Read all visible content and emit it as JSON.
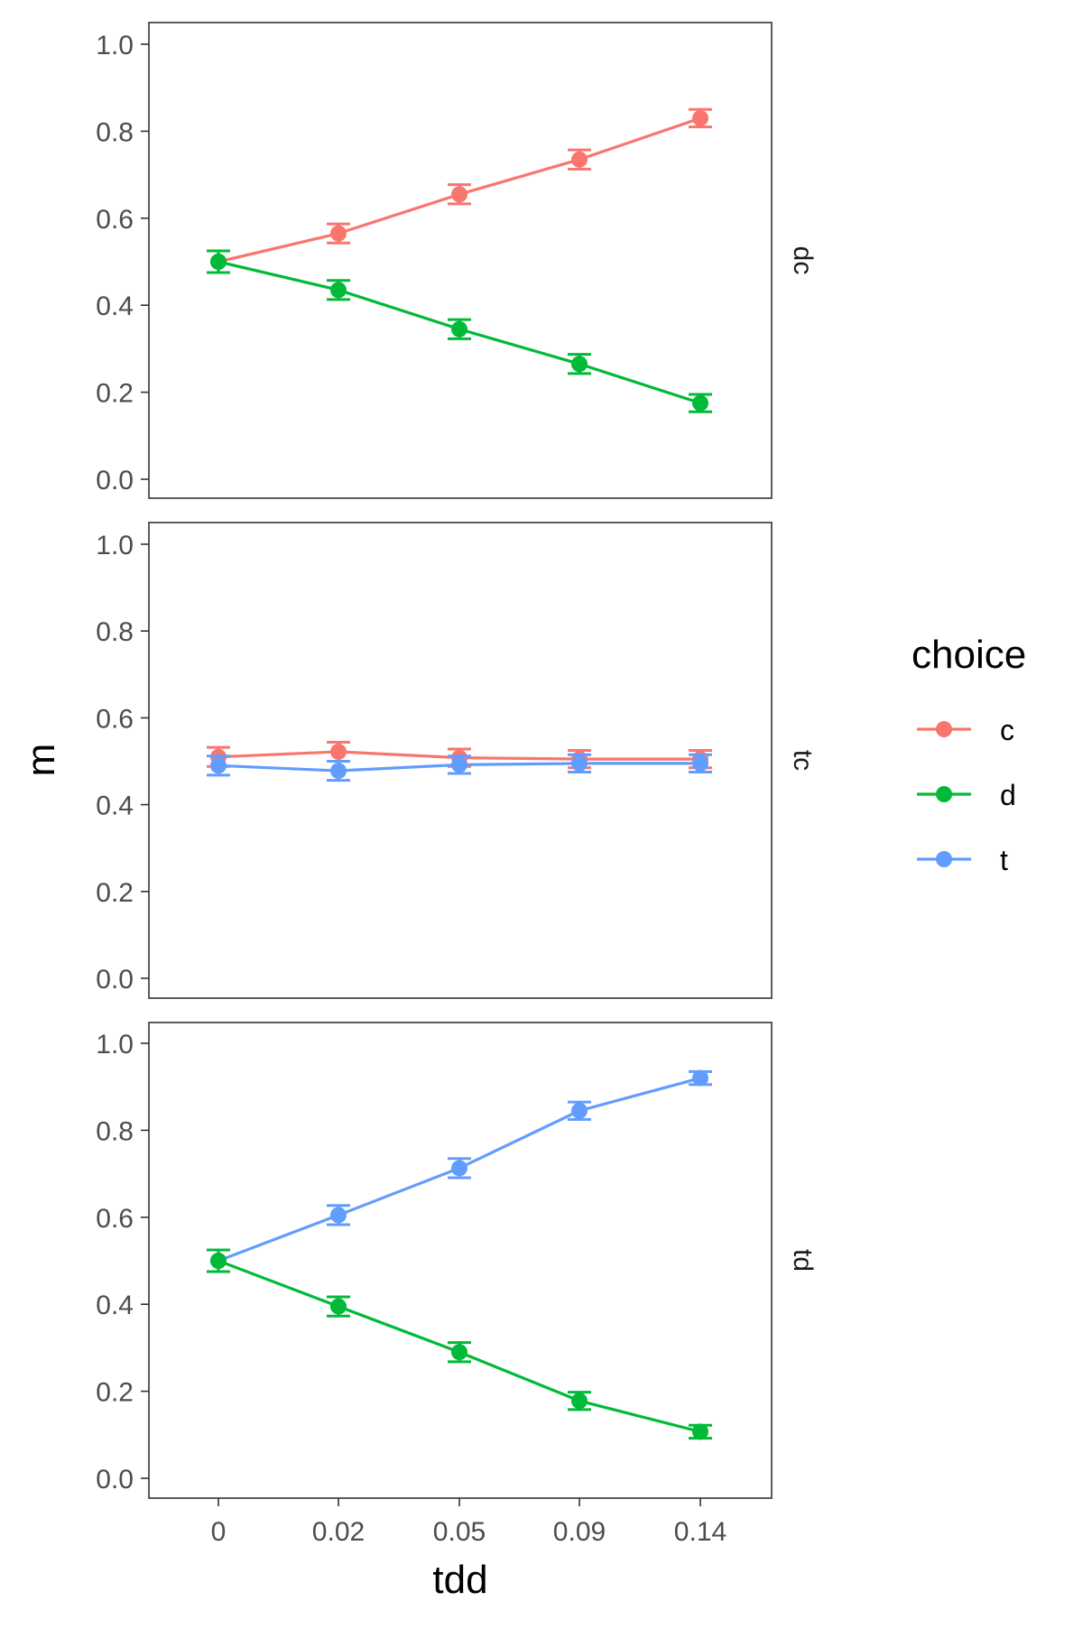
{
  "chart_data": {
    "type": "line",
    "x": [
      "0",
      "0.02",
      "0.05",
      "0.09",
      "0.14"
    ],
    "xlabel": "tdd",
    "ylabel": "m",
    "ylim": [
      0,
      1
    ],
    "yticks": [
      "0.0",
      "0.2",
      "0.4",
      "0.6",
      "0.8",
      "1.0"
    ],
    "grid": false,
    "legend": {
      "title": "choice",
      "position": "right",
      "entries": [
        {
          "name": "c",
          "color": "#F8766D"
        },
        {
          "name": "d",
          "color": "#00BA38"
        },
        {
          "name": "t",
          "color": "#619CFF"
        }
      ]
    },
    "facets": [
      {
        "label": "dc",
        "series": [
          {
            "name": "c",
            "color": "#F8766D",
            "values": [
              0.5,
              0.565,
              0.655,
              0.735,
              0.83
            ],
            "error": [
              0.025,
              0.022,
              0.022,
              0.022,
              0.02
            ]
          },
          {
            "name": "d",
            "color": "#00BA38",
            "values": [
              0.5,
              0.435,
              0.345,
              0.265,
              0.175
            ],
            "error": [
              0.025,
              0.022,
              0.022,
              0.022,
              0.02
            ]
          }
        ]
      },
      {
        "label": "tc",
        "series": [
          {
            "name": "c",
            "color": "#F8766D",
            "values": [
              0.51,
              0.522,
              0.508,
              0.505,
              0.505
            ],
            "error": [
              0.022,
              0.022,
              0.02,
              0.02,
              0.02
            ]
          },
          {
            "name": "t",
            "color": "#619CFF",
            "values": [
              0.49,
              0.478,
              0.492,
              0.495,
              0.495
            ],
            "error": [
              0.022,
              0.022,
              0.02,
              0.02,
              0.02
            ]
          }
        ]
      },
      {
        "label": "td",
        "series": [
          {
            "name": "t",
            "color": "#619CFF",
            "values": [
              0.5,
              0.605,
              0.713,
              0.845,
              0.92
            ],
            "error": [
              0.025,
              0.022,
              0.022,
              0.02,
              0.015
            ]
          },
          {
            "name": "d",
            "color": "#00BA38",
            "values": [
              0.5,
              0.395,
              0.29,
              0.178,
              0.107
            ],
            "error": [
              0.025,
              0.022,
              0.022,
              0.02,
              0.015
            ]
          }
        ]
      }
    ]
  }
}
